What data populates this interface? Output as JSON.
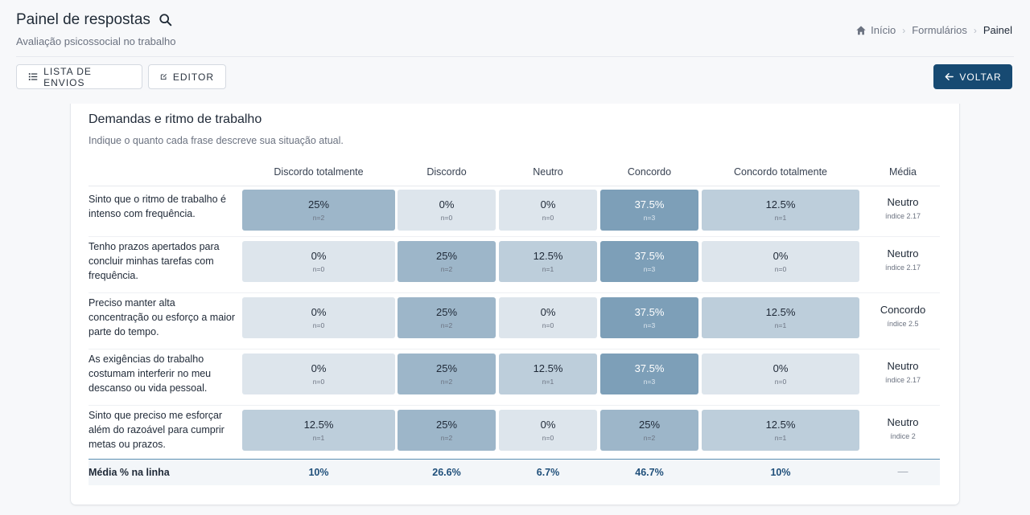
{
  "header": {
    "title": "Painel de respostas",
    "subtitle": "Avaliação psicossocial no trabalho",
    "breadcrumb": [
      "Início",
      "Formulários",
      "Painel"
    ],
    "buttons": {
      "list": "LISTA DE ENVIOS",
      "editor": "EDITOR",
      "back": "VOLTAR"
    }
  },
  "section": {
    "title": "Demandas e ritmo de trabalho",
    "subtitle": "Indique o quanto cada frase descreve sua situação atual.",
    "columns": [
      "Discordo totalmente",
      "Discordo",
      "Neutro",
      "Concordo",
      "Concordo totalmente"
    ],
    "avg_header": "Média",
    "rows": [
      {
        "question": "Sinto que o ritmo de trabalho é intenso com frequência.",
        "cells": [
          {
            "pct": "25%",
            "n": "n=2",
            "value": 25
          },
          {
            "pct": "0%",
            "n": "n=0",
            "value": 0
          },
          {
            "pct": "0%",
            "n": "n=0",
            "value": 0
          },
          {
            "pct": "37.5%",
            "n": "n=3",
            "value": 37.5
          },
          {
            "pct": "12.5%",
            "n": "n=1",
            "value": 12.5
          }
        ],
        "avg_label": "Neutro",
        "avg_index": "índice 2.17"
      },
      {
        "question": "Tenho prazos apertados para concluir minhas tarefas com frequência.",
        "cells": [
          {
            "pct": "0%",
            "n": "n=0",
            "value": 0
          },
          {
            "pct": "25%",
            "n": "n=2",
            "value": 25
          },
          {
            "pct": "12.5%",
            "n": "n=1",
            "value": 12.5
          },
          {
            "pct": "37.5%",
            "n": "n=3",
            "value": 37.5
          },
          {
            "pct": "0%",
            "n": "n=0",
            "value": 0
          }
        ],
        "avg_label": "Neutro",
        "avg_index": "índice 2.17"
      },
      {
        "question": "Preciso manter alta concentração ou esforço a maior parte do tempo.",
        "cells": [
          {
            "pct": "0%",
            "n": "n=0",
            "value": 0
          },
          {
            "pct": "25%",
            "n": "n=2",
            "value": 25
          },
          {
            "pct": "0%",
            "n": "n=0",
            "value": 0
          },
          {
            "pct": "37.5%",
            "n": "n=3",
            "value": 37.5
          },
          {
            "pct": "12.5%",
            "n": "n=1",
            "value": 12.5
          }
        ],
        "avg_label": "Concordo",
        "avg_index": "índice 2.5"
      },
      {
        "question": "As exigências do trabalho costumam interferir no meu descanso ou vida pessoal.",
        "cells": [
          {
            "pct": "0%",
            "n": "n=0",
            "value": 0
          },
          {
            "pct": "25%",
            "n": "n=2",
            "value": 25
          },
          {
            "pct": "12.5%",
            "n": "n=1",
            "value": 12.5
          },
          {
            "pct": "37.5%",
            "n": "n=3",
            "value": 37.5
          },
          {
            "pct": "0%",
            "n": "n=0",
            "value": 0
          }
        ],
        "avg_label": "Neutro",
        "avg_index": "índice 2.17"
      },
      {
        "question": "Sinto que preciso me esforçar além do razoável para cumprir metas ou prazos.",
        "cells": [
          {
            "pct": "12.5%",
            "n": "n=1",
            "value": 12.5
          },
          {
            "pct": "25%",
            "n": "n=2",
            "value": 25
          },
          {
            "pct": "0%",
            "n": "n=0",
            "value": 0
          },
          {
            "pct": "25%",
            "n": "n=2",
            "value": 25
          },
          {
            "pct": "12.5%",
            "n": "n=1",
            "value": 12.5
          }
        ],
        "avg_label": "Neutro",
        "avg_index": "índice 2"
      }
    ],
    "footer": {
      "label": "Média % na linha",
      "values": [
        "10%",
        "26.6%",
        "6.7%",
        "46.7%",
        "10%"
      ],
      "avg": "—"
    }
  },
  "colors": {
    "accent": "#174a72",
    "heat_low": "#dde5ec",
    "heat_high": "#7d9fb8"
  }
}
